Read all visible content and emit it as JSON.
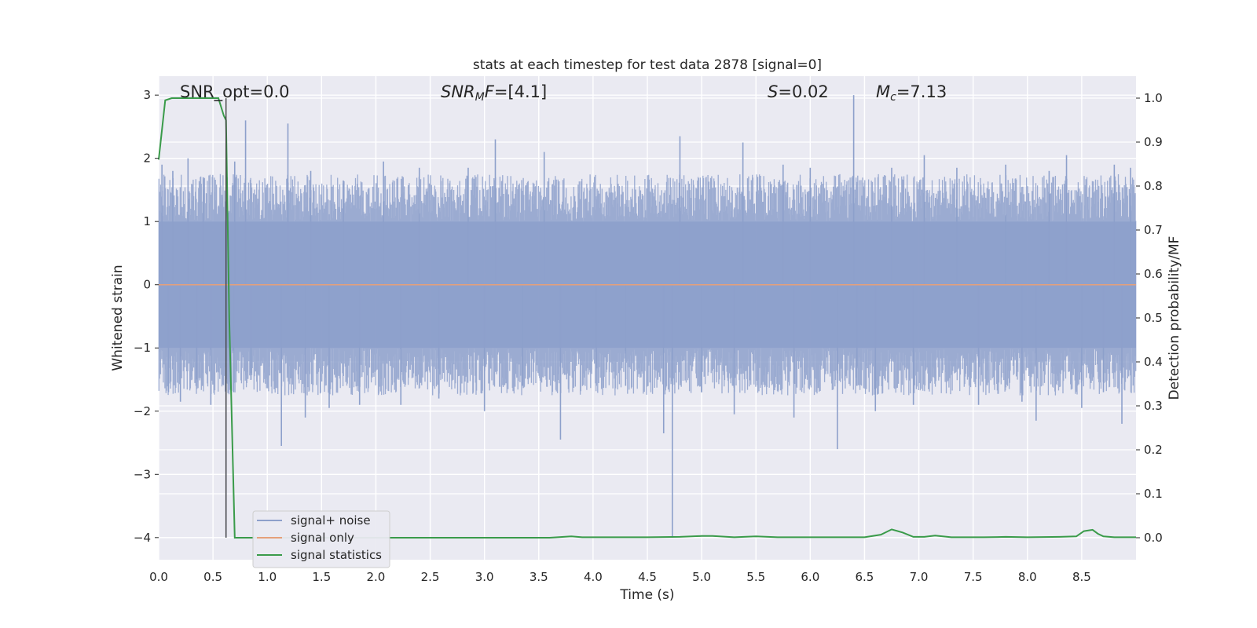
{
  "chart_data": {
    "type": "line",
    "title": "stats at each timestep for test data 2878 [signal=0]",
    "xlabel": "Time (s)",
    "ylabel": "Whitened strain",
    "y2label": "Detection probability/MF",
    "xlim": [
      0.0,
      9.0
    ],
    "ylim": [
      -4.35,
      3.3
    ],
    "y2lim": [
      -0.05,
      1.05
    ],
    "xticks": [
      "0.0",
      "0.5",
      "1.0",
      "1.5",
      "2.0",
      "2.5",
      "3.0",
      "3.5",
      "4.0",
      "4.5",
      "5.0",
      "5.5",
      "6.0",
      "6.5",
      "7.0",
      "7.5",
      "8.0",
      "8.5"
    ],
    "yticks": [
      "3",
      "2",
      "1",
      "0",
      "−1",
      "−2",
      "−3",
      "−4"
    ],
    "y2ticks": [
      "1.0",
      "0.9",
      "0.8",
      "0.7",
      "0.6",
      "0.5",
      "0.4",
      "0.3",
      "0.2",
      "0.1",
      "0.0"
    ],
    "grid": true,
    "legend_position": "lower-left",
    "annotations": {
      "snr_opt": "SNR_opt=0.0",
      "snr_mf_sym": "SNR",
      "snr_mf_sub": "M",
      "snr_mf_sym2": "F",
      "snr_mf_val": "=[4.1]",
      "s_sym": "S",
      "s_val": "=0.02",
      "mc_sym": "M",
      "mc_sub": "c",
      "mc_val": "=7.13"
    },
    "series": [
      {
        "name": "signal+ noise",
        "color": "#8da0cb",
        "description": "whitened strain noise samples, approx. range -2.5..2.6 with outliers at t=0.62 (-4.0) and t=4.73 (-4.0)",
        "band_abs": 1.0,
        "spikes": [
          {
            "t": 0.03,
            "v": 1.9
          },
          {
            "t": 0.09,
            "v": -1.7
          },
          {
            "t": 0.13,
            "v": 1.8
          },
          {
            "t": 0.2,
            "v": -1.85
          },
          {
            "t": 0.27,
            "v": 2.0
          },
          {
            "t": 0.35,
            "v": -1.5
          },
          {
            "t": 0.41,
            "v": 1.7
          },
          {
            "t": 0.48,
            "v": -1.9
          },
          {
            "t": 0.62,
            "v": -4.0
          },
          {
            "t": 0.69,
            "v": -1.7
          },
          {
            "t": 0.7,
            "v": 1.95
          },
          {
            "t": 0.8,
            "v": 2.6
          },
          {
            "t": 0.85,
            "v": -1.4
          },
          {
            "t": 1.13,
            "v": -2.55
          },
          {
            "t": 1.19,
            "v": 2.55
          },
          {
            "t": 1.35,
            "v": -2.1
          },
          {
            "t": 1.4,
            "v": 1.8
          },
          {
            "t": 1.57,
            "v": -1.95
          },
          {
            "t": 1.7,
            "v": 1.65
          },
          {
            "t": 1.85,
            "v": -1.9
          },
          {
            "t": 2.07,
            "v": 1.95
          },
          {
            "t": 2.23,
            "v": -1.9
          },
          {
            "t": 2.4,
            "v": 1.85
          },
          {
            "t": 2.58,
            "v": -1.8
          },
          {
            "t": 2.85,
            "v": 1.85
          },
          {
            "t": 3.0,
            "v": -2.0
          },
          {
            "t": 3.1,
            "v": 2.3
          },
          {
            "t": 3.35,
            "v": -1.6
          },
          {
            "t": 3.55,
            "v": 2.1
          },
          {
            "t": 3.7,
            "v": -2.45
          },
          {
            "t": 4.03,
            "v": -1.6
          },
          {
            "t": 4.3,
            "v": -1.6
          },
          {
            "t": 4.65,
            "v": -2.35
          },
          {
            "t": 4.73,
            "v": -4.0
          },
          {
            "t": 4.8,
            "v": 2.35
          },
          {
            "t": 5.0,
            "v": -1.7
          },
          {
            "t": 5.3,
            "v": -2.05
          },
          {
            "t": 5.38,
            "v": 2.25
          },
          {
            "t": 5.75,
            "v": 1.9
          },
          {
            "t": 5.85,
            "v": -2.1
          },
          {
            "t": 6.0,
            "v": 1.85
          },
          {
            "t": 6.25,
            "v": -2.6
          },
          {
            "t": 6.4,
            "v": 3.0
          },
          {
            "t": 6.43,
            "v": -1.6
          },
          {
            "t": 6.6,
            "v": -2.0
          },
          {
            "t": 6.75,
            "v": 1.85
          },
          {
            "t": 6.95,
            "v": -1.9
          },
          {
            "t": 7.05,
            "v": 2.05
          },
          {
            "t": 7.35,
            "v": 1.85
          },
          {
            "t": 7.55,
            "v": -1.9
          },
          {
            "t": 7.8,
            "v": 1.9
          },
          {
            "t": 7.95,
            "v": -1.85
          },
          {
            "t": 8.08,
            "v": -2.15
          },
          {
            "t": 8.2,
            "v": 1.8
          },
          {
            "t": 8.36,
            "v": 2.05
          },
          {
            "t": 8.5,
            "v": -1.95
          },
          {
            "t": 8.7,
            "v": -1.7
          },
          {
            "t": 8.8,
            "v": 1.9
          },
          {
            "t": 8.87,
            "v": -2.2
          },
          {
            "t": 8.95,
            "v": 1.85
          }
        ]
      },
      {
        "name": "signal only",
        "color": "#e5a07a",
        "axis": "left",
        "x": [
          0.0,
          9.0
        ],
        "y": [
          0.0,
          0.0
        ]
      },
      {
        "name": "signal statistics",
        "color": "#3a9b4a",
        "axis": "right",
        "x": [
          0.0,
          0.06,
          0.12,
          0.2,
          0.3,
          0.4,
          0.5,
          0.55,
          0.6,
          0.62,
          0.65,
          0.7,
          1.0,
          2.0,
          3.0,
          3.6,
          3.8,
          3.9,
          4.5,
          4.8,
          5.0,
          5.1,
          5.3,
          5.5,
          5.7,
          6.0,
          6.5,
          6.65,
          6.75,
          6.85,
          6.95,
          7.05,
          7.15,
          7.3,
          7.6,
          7.8,
          8.0,
          8.3,
          8.45,
          8.52,
          8.6,
          8.65,
          8.7,
          8.8,
          9.0
        ],
        "y": [
          0.86,
          0.995,
          1.0,
          1.0,
          1.0,
          1.0,
          1.0,
          1.0,
          0.96,
          0.95,
          0.5,
          0.0,
          0.0,
          0.0,
          0.0,
          0.0,
          0.003,
          0.001,
          0.001,
          0.002,
          0.004,
          0.004,
          0.001,
          0.003,
          0.001,
          0.001,
          0.001,
          0.007,
          0.019,
          0.012,
          0.002,
          0.002,
          0.005,
          0.001,
          0.001,
          0.002,
          0.001,
          0.002,
          0.003,
          0.015,
          0.018,
          0.009,
          0.003,
          0.001,
          0.001
        ]
      }
    ],
    "vline": {
      "x": 0.62
    }
  }
}
